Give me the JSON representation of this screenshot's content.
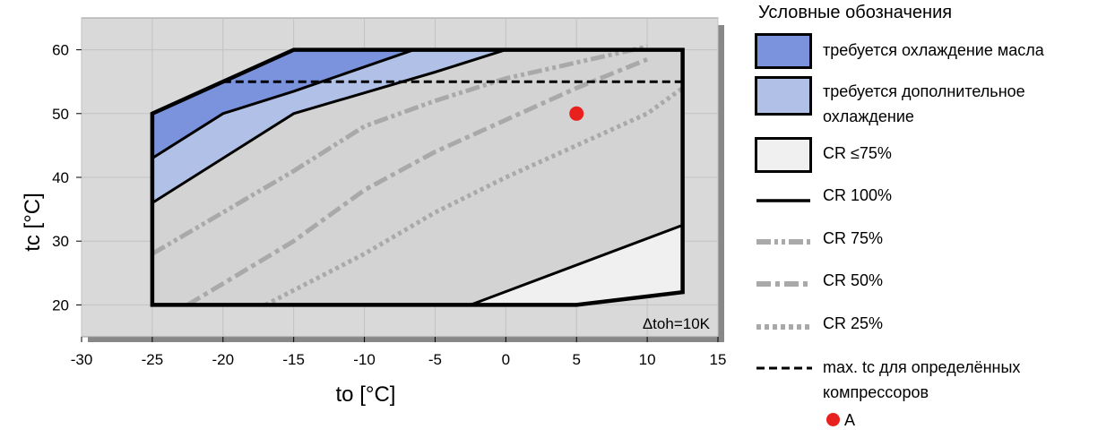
{
  "chart_data": {
    "type": "line",
    "xlabel": "to [°C]",
    "ylabel": "tc [°C]",
    "xlim": [
      -30,
      15
    ],
    "ylim": [
      15,
      65
    ],
    "xticks": [
      -30,
      -25,
      -20,
      -15,
      -10,
      -5,
      0,
      5,
      10,
      15
    ],
    "yticks": [
      20,
      30,
      40,
      50,
      60
    ],
    "grid": true,
    "annotation": "Δtoh=10K",
    "envelope": [
      [
        -25,
        20
      ],
      [
        -25,
        50
      ],
      [
        -15,
        60
      ],
      [
        12.5,
        60
      ],
      [
        12.5,
        22
      ],
      [
        5,
        20
      ]
    ],
    "regions": [
      {
        "name": "oil_cooling",
        "color": "#7b93dc",
        "polygon": [
          [
            -25,
            43
          ],
          [
            -20,
            50
          ],
          [
            -15,
            53.5
          ],
          [
            -6.5,
            60
          ],
          [
            -15,
            60
          ],
          [
            -25,
            50
          ]
        ]
      },
      {
        "name": "additional_cooling",
        "color": "#b0c0e6",
        "polygon": [
          [
            -25,
            36
          ],
          [
            -15,
            50
          ],
          [
            -5,
            56.5
          ],
          [
            0,
            60
          ],
          [
            -6.5,
            60
          ],
          [
            -15,
            53.5
          ],
          [
            -20,
            50
          ],
          [
            -25,
            43
          ]
        ]
      },
      {
        "name": "cr_le_75",
        "color": "#f0f0f0",
        "polygon": [
          [
            -2.5,
            20
          ],
          [
            5,
            20
          ],
          [
            12.5,
            22
          ],
          [
            12.5,
            32.5
          ]
        ]
      }
    ],
    "series": [
      {
        "style": "cr100",
        "points": [
          [
            -25,
            43
          ],
          [
            -20,
            50
          ],
          [
            -15,
            53.5
          ],
          [
            -6.5,
            60
          ]
        ]
      },
      {
        "style": "cr100",
        "points": [
          [
            -25,
            36
          ],
          [
            -15,
            50
          ],
          [
            -5,
            56.5
          ],
          [
            0,
            60
          ]
        ]
      },
      {
        "style": "cr100",
        "points": [
          [
            -2.5,
            20
          ],
          [
            12.5,
            32.5
          ]
        ]
      },
      {
        "style": "cr75",
        "points": [
          [
            -25,
            28
          ],
          [
            -15,
            41
          ],
          [
            -10,
            48
          ],
          [
            -5,
            52
          ],
          [
            0,
            55.5
          ],
          [
            5,
            58
          ],
          [
            10,
            60.5
          ]
        ]
      },
      {
        "style": "cr50",
        "points": [
          [
            -22.5,
            20
          ],
          [
            -15,
            30
          ],
          [
            -10,
            38
          ],
          [
            -5,
            44
          ],
          [
            0,
            49
          ],
          [
            5,
            54
          ],
          [
            10,
            58.5
          ]
        ]
      },
      {
        "style": "cr25",
        "points": [
          [
            -17,
            20
          ],
          [
            -10,
            28
          ],
          [
            -5,
            34.5
          ],
          [
            0,
            40
          ],
          [
            5,
            45
          ],
          [
            10,
            50
          ],
          [
            12.5,
            54
          ]
        ]
      }
    ],
    "max_tc": 55,
    "max_tc_x": [
      -20,
      12.5
    ],
    "point_a": {
      "x": 5,
      "y": 50,
      "label": "A",
      "color": "#e8201e"
    }
  },
  "legend": {
    "title": "Условные обозначения",
    "items": [
      {
        "label": "требуется охлаждение масла"
      },
      {
        "label": "требуется дополнительное охлаждение"
      },
      {
        "label": "CR ≤75%"
      },
      {
        "label": "CR 100%"
      },
      {
        "label": "CR 75%"
      },
      {
        "label": "CR 50%"
      },
      {
        "label": "CR 25%"
      },
      {
        "label": "max. tc для определённых компрессоров"
      }
    ],
    "point_label": "A"
  }
}
